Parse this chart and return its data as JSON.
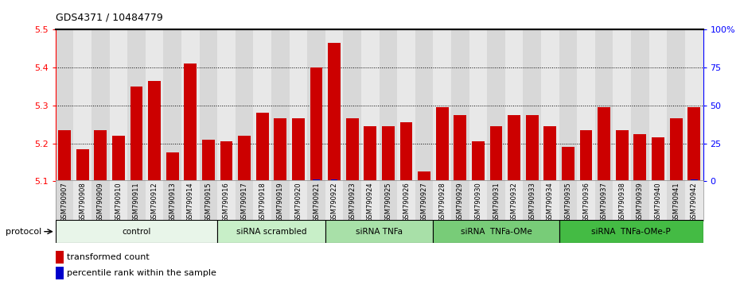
{
  "title": "GDS4371 / 10484779",
  "samples": [
    "GSM790907",
    "GSM790908",
    "GSM790909",
    "GSM790910",
    "GSM790911",
    "GSM790912",
    "GSM790913",
    "GSM790914",
    "GSM790915",
    "GSM790916",
    "GSM790917",
    "GSM790918",
    "GSM790919",
    "GSM790920",
    "GSM790921",
    "GSM790922",
    "GSM790923",
    "GSM790924",
    "GSM790925",
    "GSM790926",
    "GSM790927",
    "GSM790928",
    "GSM790929",
    "GSM790930",
    "GSM790931",
    "GSM790932",
    "GSM790933",
    "GSM790934",
    "GSM790935",
    "GSM790936",
    "GSM790937",
    "GSM790938",
    "GSM790939",
    "GSM790940",
    "GSM790941",
    "GSM790942"
  ],
  "red_values": [
    5.235,
    5.185,
    5.235,
    5.22,
    5.35,
    5.365,
    5.175,
    5.41,
    5.21,
    5.205,
    5.22,
    5.28,
    5.265,
    5.265,
    5.4,
    5.465,
    5.265,
    5.245,
    5.245,
    5.255,
    5.125,
    5.295,
    5.275,
    5.205,
    5.245,
    5.275,
    5.275,
    5.245,
    5.19,
    5.235,
    5.295,
    5.235,
    5.225,
    5.215,
    5.265,
    5.295
  ],
  "blue_values": [
    1,
    1,
    1,
    1,
    1,
    1,
    1,
    1,
    1,
    1,
    1,
    1,
    1,
    1,
    2,
    2,
    1,
    1,
    1,
    1,
    1,
    1,
    1,
    1,
    1,
    1,
    1,
    1,
    1,
    1,
    1,
    1,
    1,
    1,
    1,
    2
  ],
  "groups": [
    {
      "label": "control",
      "start": 0,
      "end": 8,
      "color": "#e8f5e9"
    },
    {
      "label": "siRNA scrambled",
      "start": 9,
      "end": 14,
      "color": "#c8efc8"
    },
    {
      "label": "siRNA TNFa",
      "start": 15,
      "end": 20,
      "color": "#a8e0a8"
    },
    {
      "label": "siRNA  TNFa-OMe",
      "start": 21,
      "end": 27,
      "color": "#78cc78"
    },
    {
      "label": "siRNA  TNFa-OMe-P",
      "start": 28,
      "end": 35,
      "color": "#44bb44"
    }
  ],
  "ylim_left": [
    5.1,
    5.5
  ],
  "ylim_right": [
    0,
    100
  ],
  "yticks_left": [
    5.1,
    5.2,
    5.3,
    5.4,
    5.5
  ],
  "yticks_right": [
    0,
    25,
    50,
    75,
    100
  ],
  "ytick_labels_right": [
    "0",
    "25",
    "50",
    "75",
    "100%"
  ],
  "bar_color": "#cc0000",
  "blue_bar_color": "#0000cc",
  "col_bg_odd": "#d8d8d8",
  "col_bg_even": "#e8e8e8",
  "plot_bg": "#ffffff",
  "protocol_label": "protocol",
  "legend_red": "transformed count",
  "legend_blue": "percentile rank within the sample"
}
